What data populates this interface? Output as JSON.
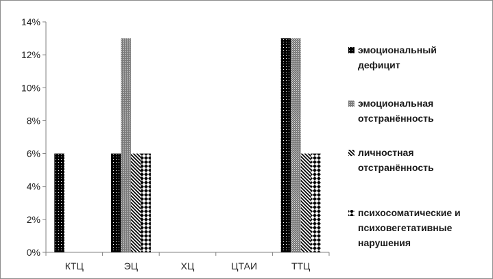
{
  "chart_data": {
    "type": "bar",
    "title": "",
    "xlabel": "",
    "ylabel": "",
    "categories": [
      "КТЦ",
      "ЭЦ",
      "ХЦ",
      "ЦТАИ",
      "ТТЦ"
    ],
    "ylim": [
      0,
      14
    ],
    "yticks": [
      "0%",
      "2%",
      "4%",
      "6%",
      "8%",
      "10%",
      "12%",
      "14%"
    ],
    "grid": false,
    "legend": "right",
    "series": [
      {
        "name": "эмоциональный дефицит",
        "lines": [
          "эмоциональный",
          "дефицит"
        ],
        "values": [
          6,
          6,
          0,
          0,
          13
        ],
        "pattern": "dots-black"
      },
      {
        "name": "эмоциональная отстранённость",
        "lines": [
          "эмоциональная",
          "отстранённость"
        ],
        "values": [
          0,
          13,
          0,
          0,
          13
        ],
        "pattern": "checker-gray"
      },
      {
        "name": "личностная отстранённость",
        "lines": [
          "личностная",
          "отстранённость"
        ],
        "values": [
          0,
          6,
          0,
          0,
          6
        ],
        "pattern": "diagonal"
      },
      {
        "name": "психосоматические и психовегетативные нарушения",
        "lines": [
          "психосоматические и",
          "психовегетативные",
          "нарушения"
        ],
        "values": [
          0,
          6,
          0,
          0,
          6
        ],
        "pattern": "diamond"
      }
    ]
  }
}
